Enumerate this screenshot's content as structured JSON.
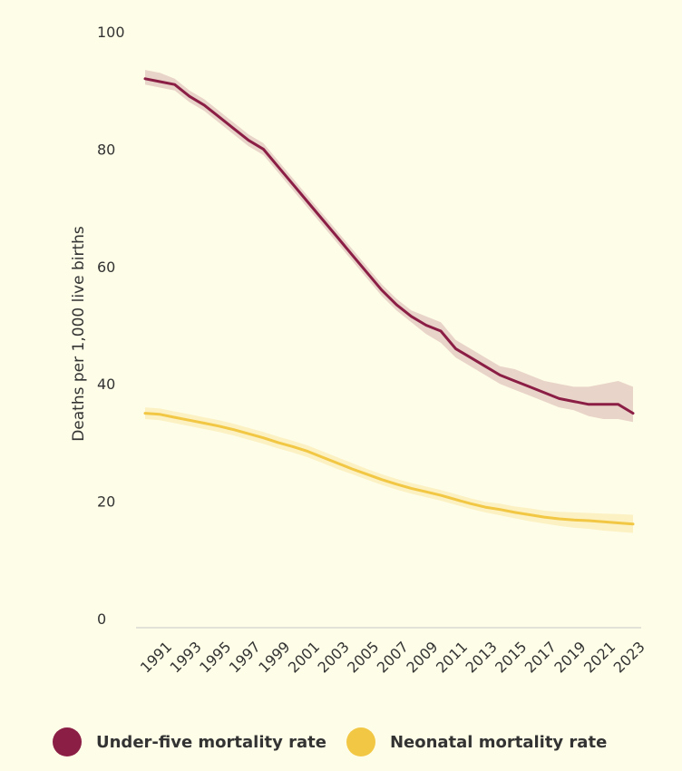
{
  "chart_data": {
    "type": "line",
    "ylabel": "Deaths per 1,000 live births",
    "ylim": [
      0,
      100
    ],
    "yticks": [
      0,
      20,
      40,
      60,
      80,
      100
    ],
    "x_tick_labels": [
      "1991",
      "1993",
      "1995",
      "1997",
      "1999",
      "2001",
      "2003",
      "2005",
      "2007",
      "2009",
      "2011",
      "2013",
      "2015",
      "2017",
      "2019",
      "2021",
      "2023"
    ],
    "x": [
      1990,
      1991,
      1992,
      1993,
      1994,
      1995,
      1996,
      1997,
      1998,
      1999,
      2000,
      2001,
      2002,
      2003,
      2004,
      2005,
      2006,
      2007,
      2008,
      2009,
      2010,
      2011,
      2012,
      2013,
      2014,
      2015,
      2016,
      2017,
      2018,
      2019,
      2020,
      2021,
      2022,
      2023
    ],
    "series": [
      {
        "name": "Under-five mortality rate",
        "color": "#8b1e45",
        "values": [
          92,
          91.5,
          91,
          89,
          87.5,
          85.5,
          83.5,
          81.5,
          80,
          77,
          74,
          71,
          68,
          65,
          62,
          59,
          56,
          53.5,
          51.5,
          50,
          49,
          46,
          44.5,
          43,
          41.5,
          40.5,
          39.5,
          38.5,
          37.5,
          37,
          36.5,
          36.5,
          36.5,
          35
        ],
        "lower": [
          91,
          90.5,
          90,
          88,
          86.5,
          84.5,
          82.5,
          80.5,
          79,
          76,
          73,
          70,
          67,
          64,
          61,
          58,
          55,
          52.5,
          50.5,
          48.5,
          47,
          44.5,
          43,
          41.5,
          40,
          39,
          38,
          37,
          36,
          35.5,
          34.5,
          34,
          34,
          33.5
        ],
        "upper": [
          93.5,
          93,
          92,
          90,
          88.5,
          86.5,
          84.5,
          82.5,
          81,
          78,
          75,
          72,
          69,
          66,
          63,
          60,
          57,
          54.5,
          52.5,
          51.5,
          50.5,
          47.5,
          46,
          44.5,
          43,
          42.5,
          41.5,
          40.5,
          40,
          39.5,
          39.5,
          40,
          40.5,
          39.5
        ]
      },
      {
        "name": "Neonatal mortality rate",
        "color": "#f2c744",
        "values": [
          35,
          34.8,
          34.3,
          33.8,
          33.3,
          32.8,
          32.2,
          31.5,
          30.8,
          30,
          29.3,
          28.5,
          27.5,
          26.5,
          25.5,
          24.6,
          23.7,
          22.9,
          22.2,
          21.6,
          21,
          20.3,
          19.6,
          19,
          18.6,
          18.1,
          17.7,
          17.3,
          17,
          16.8,
          16.7,
          16.5,
          16.3,
          16.1
        ],
        "lower": [
          34,
          33.8,
          33.3,
          32.8,
          32.3,
          31.8,
          31.2,
          30.5,
          29.8,
          29,
          28.3,
          27.5,
          26.5,
          25.5,
          24.6,
          23.7,
          22.8,
          22,
          21.3,
          20.7,
          20.1,
          19.4,
          18.7,
          18.1,
          17.6,
          17.1,
          16.6,
          16.2,
          15.8,
          15.5,
          15.3,
          15,
          14.8,
          14.6
        ],
        "upper": [
          36,
          35.8,
          35.3,
          34.8,
          34.3,
          33.8,
          33.2,
          32.5,
          31.8,
          31,
          30.3,
          29.5,
          28.5,
          27.5,
          26.5,
          25.5,
          24.6,
          23.8,
          23.1,
          22.5,
          21.9,
          21.2,
          20.5,
          19.9,
          19.6,
          19.1,
          18.8,
          18.4,
          18.2,
          18.1,
          18,
          17.9,
          17.8,
          17.7
        ]
      }
    ],
    "legend_position": "bottom"
  }
}
